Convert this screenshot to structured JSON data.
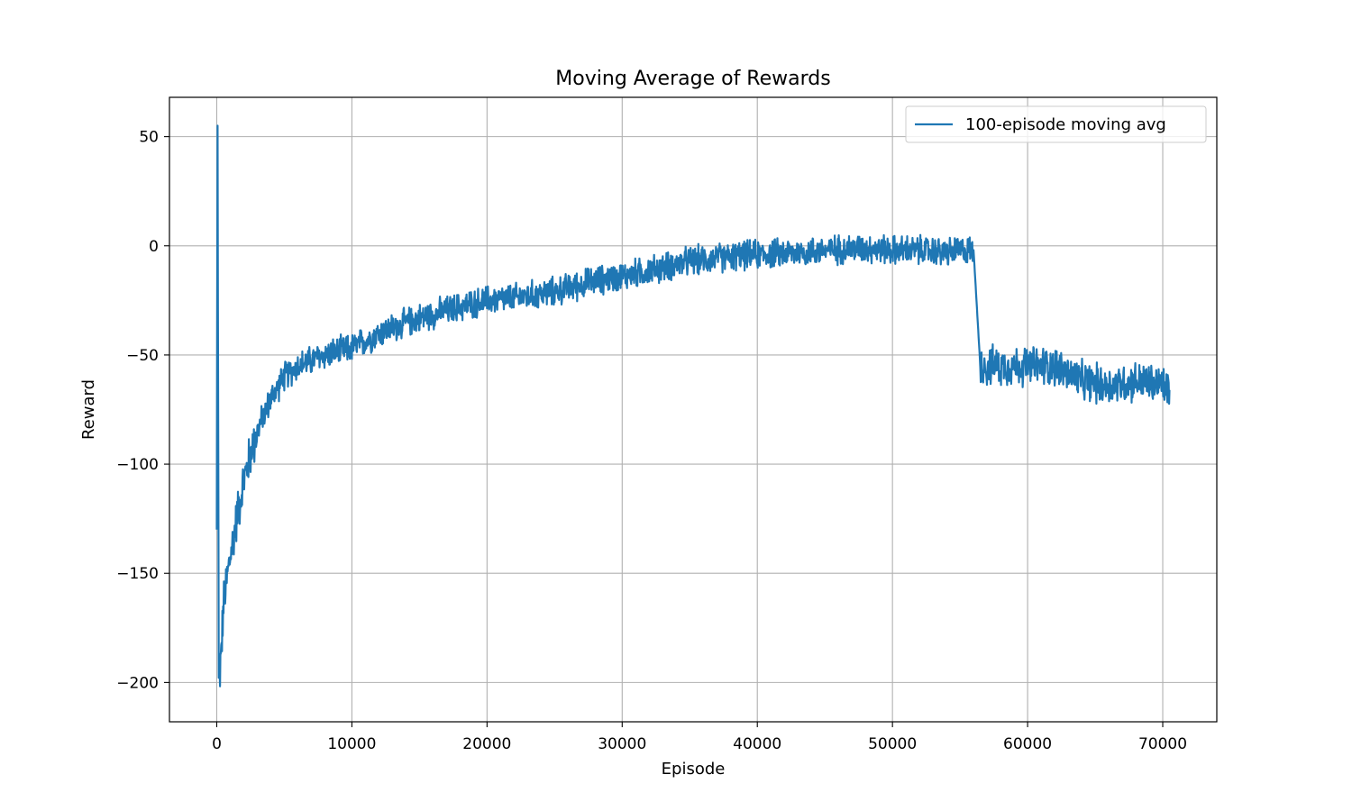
{
  "chart_data": {
    "type": "line",
    "title": "Moving Average of Rewards",
    "xlabel": "Episode",
    "ylabel": "Reward",
    "xlim": [
      -3500,
      74000
    ],
    "ylim": [
      -218,
      68
    ],
    "xticks": [
      0,
      10000,
      20000,
      30000,
      40000,
      50000,
      60000,
      70000
    ],
    "yticks": [
      50,
      0,
      -50,
      -100,
      -150,
      -200
    ],
    "grid": true,
    "legend_position": "top-right",
    "series": [
      {
        "name": "100-episode moving avg",
        "color": "#1f77b4",
        "noise_amplitude": 8,
        "x": [
          0,
          60,
          150,
          300,
          500,
          800,
          1200,
          1600,
          2000,
          2500,
          3000,
          3500,
          4000,
          5000,
          6000,
          8000,
          10000,
          12000,
          15000,
          18000,
          20000,
          22000,
          25000,
          28000,
          30000,
          33000,
          35000,
          38000,
          40000,
          43000,
          45000,
          48000,
          50000,
          52000,
          54000,
          55500,
          56000,
          56500,
          58000,
          60000,
          62000,
          64000,
          66000,
          68000,
          70000,
          70500
        ],
        "y": [
          -130,
          55,
          -200,
          -190,
          -165,
          -150,
          -135,
          -120,
          -108,
          -95,
          -85,
          -77,
          -70,
          -60,
          -55,
          -50,
          -47,
          -40,
          -33,
          -28,
          -25,
          -24,
          -21,
          -16,
          -14,
          -10,
          -7,
          -5,
          -4,
          -3,
          -2,
          -1,
          -2,
          -2,
          -3,
          -2,
          -2,
          -55,
          -55,
          -55,
          -55,
          -62,
          -64,
          -62,
          -64,
          -66
        ]
      }
    ]
  }
}
